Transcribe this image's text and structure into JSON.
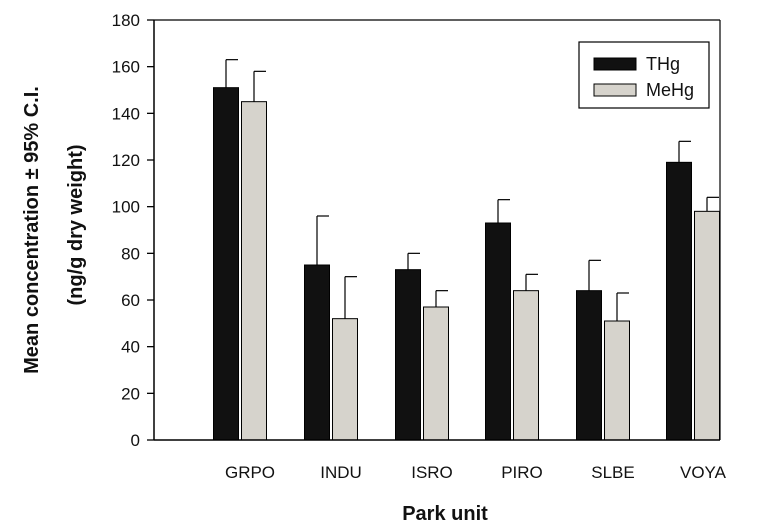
{
  "chart_data": {
    "type": "bar",
    "categories": [
      "GRPO",
      "INDU",
      "ISRO",
      "PIRO",
      "SLBE",
      "VOYA"
    ],
    "series": [
      {
        "name": "THg",
        "color": "#111111",
        "values": [
          151,
          75,
          73,
          93,
          64,
          119
        ],
        "error_upper": [
          163,
          96,
          80,
          103,
          77,
          128
        ]
      },
      {
        "name": "MeHg",
        "color": "#d6d3cc",
        "values": [
          145,
          52,
          57,
          64,
          51,
          98
        ],
        "error_upper": [
          158,
          70,
          64,
          71,
          63,
          104
        ]
      }
    ],
    "xlabel": "Park unit",
    "ylabel_line1": "Mean concentration ± 95% C.I.",
    "ylabel_line2": "(ng/g dry weight)",
    "ylim": [
      0,
      180
    ],
    "yticks": [
      0,
      20,
      40,
      60,
      80,
      100,
      120,
      140,
      160,
      180
    ],
    "grid": false,
    "legend_position": "top-right"
  }
}
